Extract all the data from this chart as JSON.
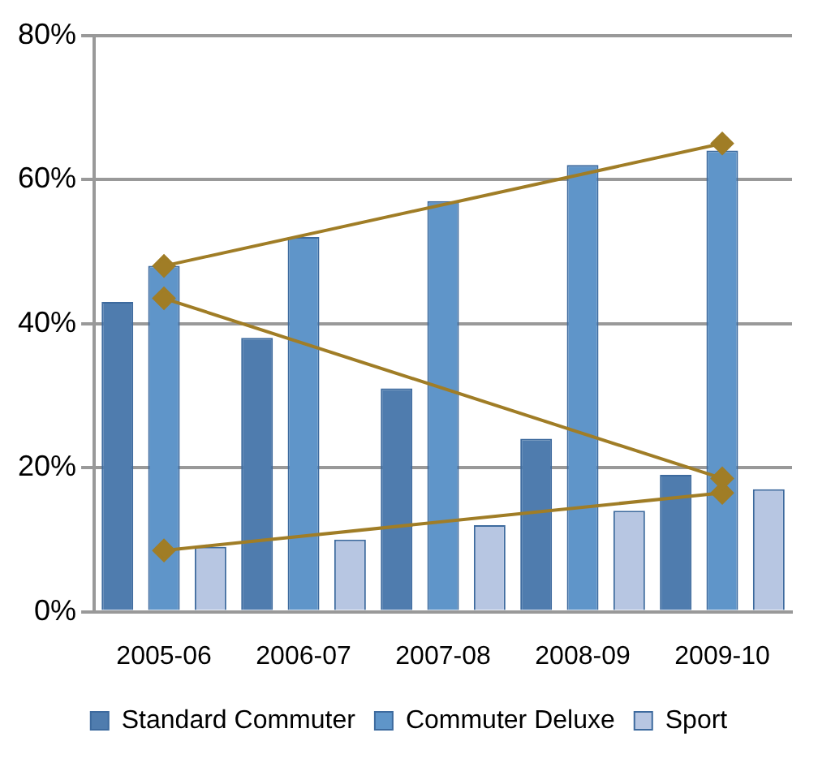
{
  "chart_data": {
    "type": "bar",
    "categories": [
      "2005-06",
      "2006-07",
      "2007-08",
      "2008-09",
      "2009-10"
    ],
    "series": [
      {
        "name": "Standard Commuter",
        "color": "#4f7cae",
        "values": [
          43,
          38,
          31,
          24,
          19
        ]
      },
      {
        "name": "Commuter Deluxe",
        "color": "#5f95c9",
        "values": [
          48,
          52,
          57,
          62,
          64
        ]
      },
      {
        "name": "Sport",
        "color": "#b7c6e2",
        "values": [
          9,
          10,
          12,
          14,
          17
        ]
      },
      {
        "type": "line",
        "color": "#a07d26",
        "values": [
          48,
          null,
          null,
          null,
          65
        ]
      },
      {
        "type": "line",
        "color": "#a07d26",
        "values": [
          43.5,
          null,
          null,
          null,
          18.5
        ]
      },
      {
        "type": "line",
        "color": "#a07d26",
        "values": [
          8.5,
          null,
          null,
          null,
          16.5
        ]
      }
    ],
    "ylim": [
      0,
      80
    ],
    "yticks": [
      {
        "value": 0,
        "label": "0%"
      },
      {
        "value": 20,
        "label": "20%"
      },
      {
        "value": 40,
        "label": "40%"
      },
      {
        "value": 60,
        "label": "60%"
      },
      {
        "value": 80,
        "label": "80%"
      }
    ],
    "grid": "y",
    "legend": "bottom",
    "marker": "diamond"
  }
}
